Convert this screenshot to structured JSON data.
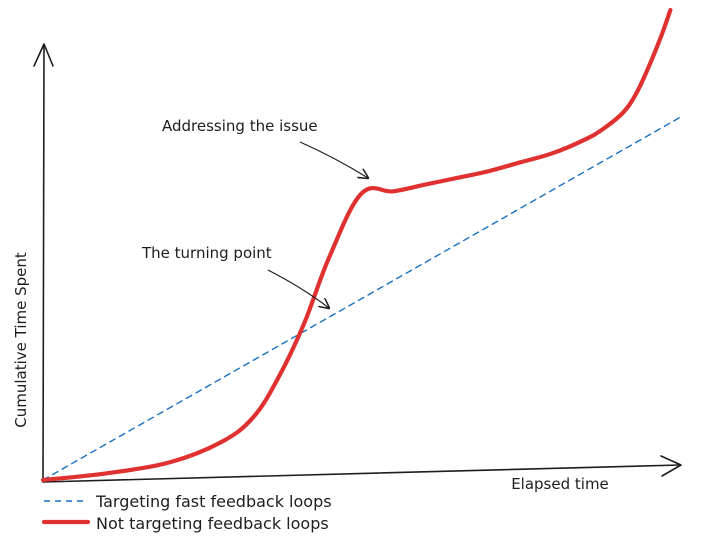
{
  "chart_data": {
    "type": "line",
    "title": "",
    "xlabel": "Elapsed time",
    "ylabel": "Cumulative Time Spent",
    "grid": false,
    "legend_position": "bottom-left",
    "x_ticks": "none",
    "y_ticks": "none",
    "series": [
      {
        "name": "Targeting fast feedback loops",
        "style": "dashed",
        "color": "#1971c2",
        "x": [
          0,
          100
        ],
        "y": [
          0,
          81
        ]
      },
      {
        "name": "Not targeting feedback loops",
        "style": "solid",
        "color": "#e03131",
        "x": [
          0,
          10,
          20,
          28,
          33,
          37,
          41,
          45,
          50,
          55,
          60,
          65,
          70,
          75,
          80,
          85,
          88,
          91,
          93,
          95,
          97,
          98.5
        ],
        "y": [
          0,
          1.5,
          4,
          8.5,
          14,
          23,
          35,
          50,
          64,
          64.5,
          66,
          67.5,
          69,
          71,
          73,
          76,
          78.5,
          82,
          86,
          92,
          99,
          105
        ]
      }
    ],
    "annotations": [
      {
        "text": "Addressing the issue",
        "x": 50,
        "y": 64
      },
      {
        "text": "The turning point",
        "x": 43.5,
        "y": 35
      }
    ]
  },
  "colors": {
    "axis": "#1e1e1e",
    "text": "#1e1e1e"
  }
}
